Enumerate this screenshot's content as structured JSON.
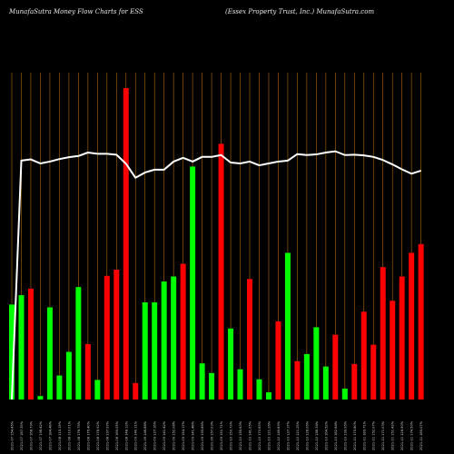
{
  "header": {
    "left_title": "MunafaSutra  Money Flow  Charts for ESS",
    "right_title": "(Essex Property Trust,  Inc.) MunafaSutra.com"
  },
  "colors": {
    "background": "#000000",
    "up": "#00ff00",
    "down": "#ff0000",
    "gridline": "#b06a10",
    "line": "#ffffff"
  },
  "chart_data": {
    "type": "bar",
    "title": "MunafaSutra  Money Flow  Charts for ESS",
    "subtitle": "(Essex Property Trust,  Inc.) MunafaSutra.com",
    "xlabel": "",
    "ylabel": "",
    "ylim": [
      0,
      100
    ],
    "grid": true,
    "categories": [
      "2021-07 154.45%",
      "2021-07 187.39%",
      "2021-07 168.79%",
      "2021-07 198.42%",
      "2021-07 184.48%",
      "2021-08 115.15%",
      "2021-08 110.01%",
      "2021-08 176.75%",
      "2021-08 176.40%",
      "2021-08 178.92%",
      "2021-08 197.97%",
      "2021-08 169.05%",
      "2021-08 148.13%",
      "2021-09 140.11%",
      "2021-09 146.88%",
      "2021-09 137.16%",
      "2021-09 141.42%",
      "2021-09 152.08%",
      "2021-09 154.17%",
      "2021-09 141.48%",
      "2021-09 155.86%",
      "2021-09 157.03%",
      "2021-09 151.71%",
      "2021-10 150.73%",
      "2021-10 155.63%",
      "2021-10 141.05%",
      "2021-10 170.63%",
      "2021-10 121.26%",
      "2021-10 149.89%",
      "2021-10 137.17%",
      "2021-10 121.25%",
      "2021-10 128.06%",
      "2021-10 158.34%",
      "2021-10 164.52%",
      "2021-10 182.64%",
      "2021-10 199.95%",
      "2021-11 175.80%",
      "2021-11 189.71%",
      "2021-11 152.07%",
      "2021-11 171.03%",
      "2021-11 151.43%",
      "2021-11 128.90%",
      "2021-11 174.50%",
      "2021-11 185.07%"
    ],
    "series": [
      {
        "values": [
          30.5,
          33.5,
          35.6,
          1.1,
          29.6,
          7.7,
          15.3,
          36.1,
          17.8,
          6.3,
          39.7,
          41.7,
          100,
          5.3,
          31.2,
          31.2,
          37.9,
          39.5,
          43.6,
          74.8,
          11.6,
          8.5,
          82.1,
          22.8,
          9.7,
          38.7,
          6.5,
          2.3,
          25.1,
          47.1,
          12.3,
          14.6,
          23.2,
          10.6,
          20.8,
          3.5,
          11.4,
          28.2,
          17.6,
          42.5,
          31.7,
          39.5,
          47.1,
          49.9
        ],
        "colors": [
          "up",
          "up",
          "down",
          "up",
          "up",
          "up",
          "up",
          "up",
          "down",
          "up",
          "down",
          "down",
          "down",
          "down",
          "up",
          "up",
          "up",
          "up",
          "down",
          "up",
          "up",
          "up",
          "down",
          "up",
          "up",
          "down",
          "up",
          "up",
          "down",
          "up",
          "down",
          "up",
          "up",
          "up",
          "down",
          "up",
          "down",
          "down",
          "down",
          "down",
          "down",
          "down",
          "down",
          "down"
        ]
      },
      {
        "type": "line",
        "values": [
          0,
          76.7,
          77.1,
          75.8,
          76.4,
          77.2,
          77.8,
          78.2,
          79.3,
          78.9,
          78.9,
          78.6,
          75.7,
          71.2,
          72.9,
          73.8,
          73.8,
          76.4,
          77.6,
          76.4,
          77.9,
          77.9,
          78.5,
          76.1,
          75.8,
          76.4,
          75.2,
          75.8,
          76.4,
          76.7,
          78.8,
          78.5,
          78.7,
          79.3,
          79.7,
          78.5,
          78.6,
          78.4,
          77.9,
          76.9,
          75.5,
          73.9,
          72.5,
          73.5
        ]
      }
    ]
  }
}
